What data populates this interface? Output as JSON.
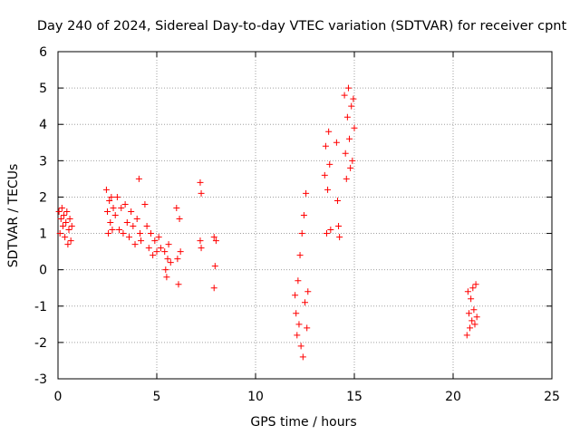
{
  "chart_data": {
    "type": "scatter",
    "title": "Day 240 of 2024, Sidereal Day-to-day VTEC variation (SDTVAR) for receiver cpnt",
    "xlabel": "GPS time / hours",
    "ylabel": "SDTVAR / TECUs",
    "xlim": [
      0,
      25
    ],
    "ylim": [
      -3,
      6
    ],
    "xticks": [
      "0",
      "5",
      "10",
      "15",
      "20",
      "25"
    ],
    "yticks": [
      "-3",
      "-2",
      "-1",
      "0",
      "1",
      "2",
      "3",
      "4",
      "5",
      "6"
    ],
    "grid": true,
    "marker": "plus",
    "series": [
      {
        "name": "SDTVAR",
        "color": "#ff0000",
        "points": [
          [
            0.05,
            1.6
          ],
          [
            0.1,
            1.0
          ],
          [
            0.15,
            1.4
          ],
          [
            0.2,
            1.7
          ],
          [
            0.25,
            1.2
          ],
          [
            0.3,
            1.5
          ],
          [
            0.35,
            0.9
          ],
          [
            0.4,
            1.3
          ],
          [
            0.45,
            1.6
          ],
          [
            0.5,
            0.7
          ],
          [
            0.55,
            1.1
          ],
          [
            0.6,
            1.4
          ],
          [
            0.65,
            0.8
          ],
          [
            0.7,
            1.2
          ],
          [
            2.45,
            2.2
          ],
          [
            2.5,
            1.6
          ],
          [
            2.55,
            1.0
          ],
          [
            2.6,
            1.9
          ],
          [
            2.65,
            1.3
          ],
          [
            2.7,
            2.0
          ],
          [
            2.75,
            1.1
          ],
          [
            2.8,
            1.7
          ],
          [
            2.9,
            1.5
          ],
          [
            3.0,
            2.0
          ],
          [
            3.1,
            1.1
          ],
          [
            3.2,
            1.7
          ],
          [
            3.3,
            1.0
          ],
          [
            3.4,
            1.8
          ],
          [
            3.5,
            1.3
          ],
          [
            3.6,
            0.9
          ],
          [
            3.7,
            1.6
          ],
          [
            3.8,
            1.2
          ],
          [
            3.9,
            0.7
          ],
          [
            4.0,
            1.4
          ],
          [
            4.1,
            2.5
          ],
          [
            4.15,
            1.0
          ],
          [
            4.2,
            0.8
          ],
          [
            4.4,
            1.8
          ],
          [
            4.5,
            1.2
          ],
          [
            4.6,
            0.6
          ],
          [
            4.7,
            1.0
          ],
          [
            4.8,
            0.4
          ],
          [
            4.9,
            0.8
          ],
          [
            5.0,
            0.5
          ],
          [
            5.1,
            0.9
          ],
          [
            5.2,
            0.6
          ],
          [
            5.4,
            0.5
          ],
          [
            5.45,
            0.0
          ],
          [
            5.5,
            -0.2
          ],
          [
            5.55,
            0.3
          ],
          [
            5.6,
            0.7
          ],
          [
            5.7,
            0.2
          ],
          [
            6.0,
            1.7
          ],
          [
            6.05,
            0.3
          ],
          [
            6.1,
            -0.4
          ],
          [
            6.15,
            1.4
          ],
          [
            6.2,
            0.5
          ],
          [
            7.2,
            2.4
          ],
          [
            7.25,
            2.1
          ],
          [
            7.2,
            0.8
          ],
          [
            7.25,
            0.6
          ],
          [
            7.9,
            0.9
          ],
          [
            7.95,
            0.1
          ],
          [
            7.9,
            -0.5
          ],
          [
            8.0,
            0.8
          ],
          [
            12.0,
            -0.7
          ],
          [
            12.05,
            -1.2
          ],
          [
            12.1,
            -1.8
          ],
          [
            12.15,
            -0.3
          ],
          [
            12.2,
            -1.5
          ],
          [
            12.25,
            0.4
          ],
          [
            12.3,
            -2.1
          ],
          [
            12.35,
            1.0
          ],
          [
            12.4,
            -2.4
          ],
          [
            12.45,
            1.5
          ],
          [
            12.5,
            -0.9
          ],
          [
            12.55,
            2.1
          ],
          [
            12.6,
            -1.6
          ],
          [
            12.65,
            -0.6
          ],
          [
            13.5,
            2.6
          ],
          [
            13.55,
            3.4
          ],
          [
            13.6,
            1.0
          ],
          [
            13.65,
            2.2
          ],
          [
            13.7,
            3.8
          ],
          [
            13.75,
            2.9
          ],
          [
            13.8,
            1.1
          ],
          [
            14.1,
            3.5
          ],
          [
            14.15,
            1.9
          ],
          [
            14.2,
            1.2
          ],
          [
            14.25,
            0.9
          ],
          [
            14.5,
            4.8
          ],
          [
            14.55,
            3.2
          ],
          [
            14.6,
            2.5
          ],
          [
            14.65,
            4.2
          ],
          [
            14.7,
            5.0
          ],
          [
            14.75,
            3.6
          ],
          [
            14.8,
            2.8
          ],
          [
            14.85,
            4.5
          ],
          [
            14.9,
            3.0
          ],
          [
            14.95,
            4.7
          ],
          [
            15.0,
            3.9
          ],
          [
            20.7,
            -1.8
          ],
          [
            20.75,
            -0.6
          ],
          [
            20.8,
            -1.2
          ],
          [
            20.85,
            -1.6
          ],
          [
            20.9,
            -0.8
          ],
          [
            20.95,
            -1.4
          ],
          [
            21.0,
            -0.5
          ],
          [
            21.05,
            -1.1
          ],
          [
            21.1,
            -1.5
          ],
          [
            21.15,
            -0.4
          ],
          [
            21.2,
            -1.3
          ]
        ]
      }
    ]
  }
}
